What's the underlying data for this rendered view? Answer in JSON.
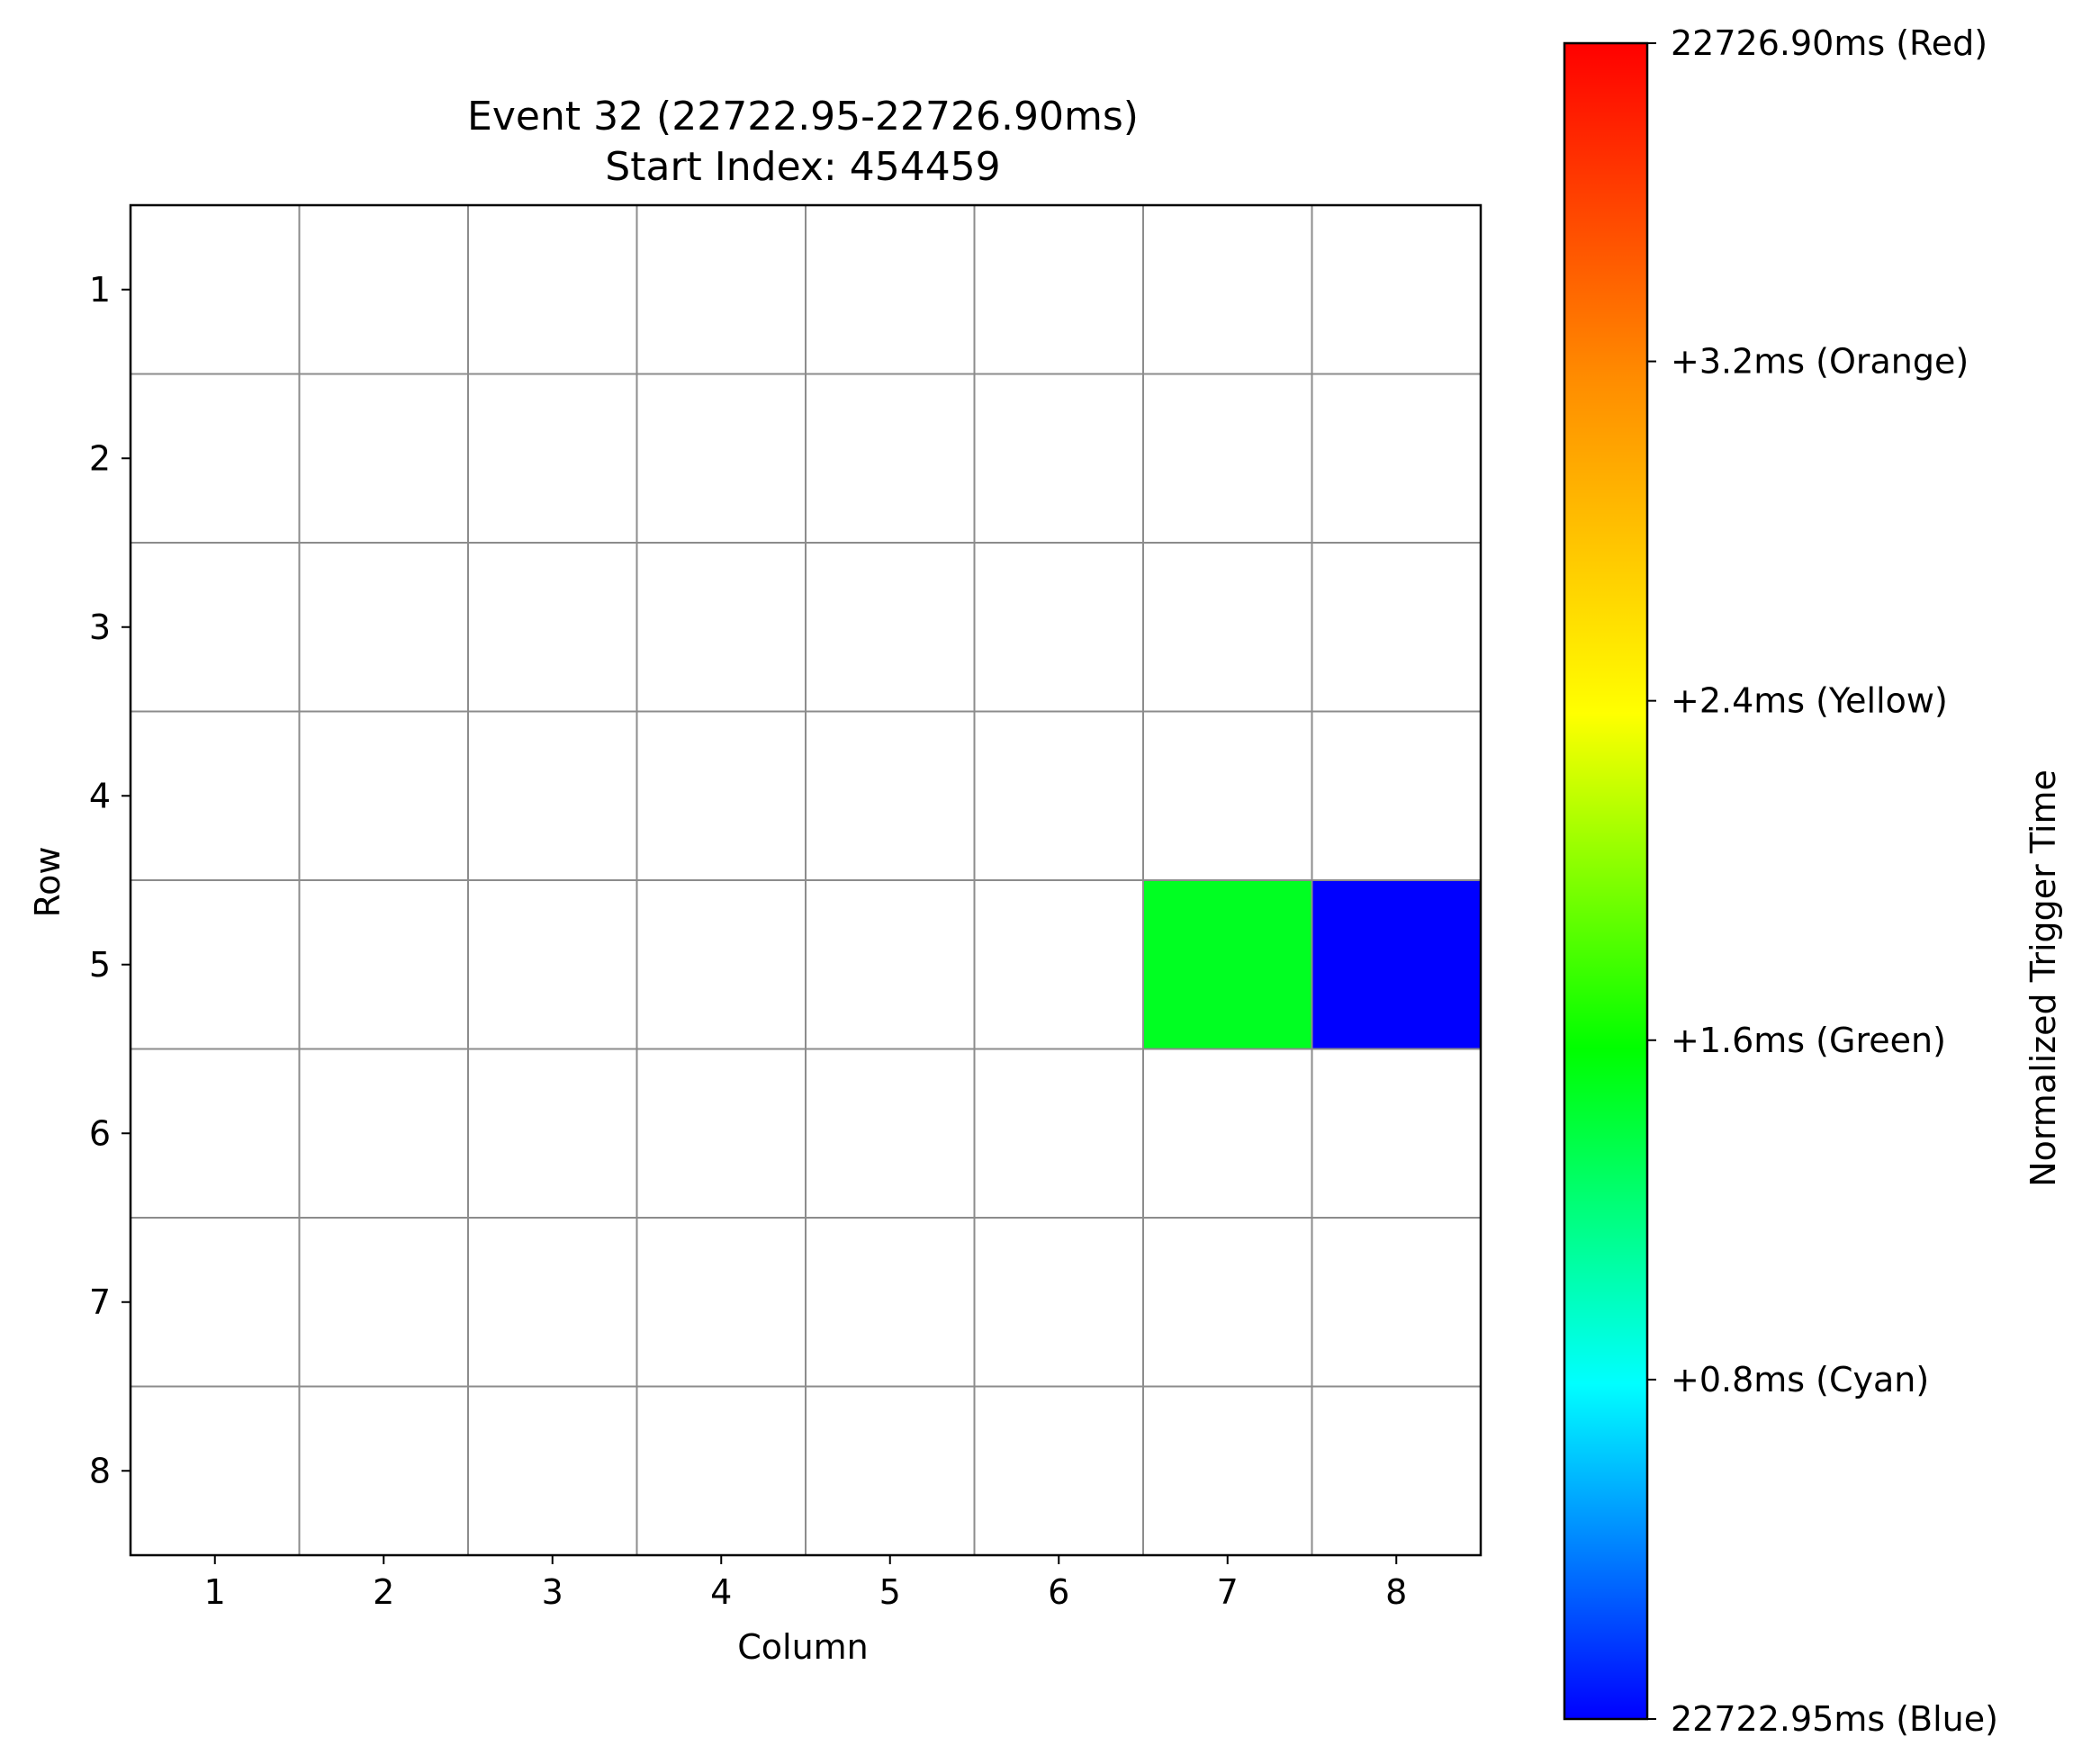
{
  "chart_data": {
    "type": "heatmap",
    "title": "Event 32 (22722.95-22726.90ms)",
    "subtitle": "Start Index: 454459",
    "xlabel": "Column",
    "ylabel": "Row",
    "x_ticks": [
      "1",
      "2",
      "3",
      "4",
      "5",
      "6",
      "7",
      "8"
    ],
    "y_ticks": [
      "1",
      "2",
      "3",
      "4",
      "5",
      "6",
      "7",
      "8"
    ],
    "rows": 8,
    "cols": 8,
    "grid": true,
    "cells": [
      {
        "row": 5,
        "col": 7,
        "value": 1.6,
        "color": "#00ff22"
      },
      {
        "row": 5,
        "col": 8,
        "value": 0.0,
        "color": "#0000ff"
      }
    ],
    "empty_color": "#ffffff",
    "colorbar": {
      "label": "Normalized Trigger Time",
      "range": [
        0,
        3.95
      ],
      "ticks": [
        {
          "value": 0.0,
          "label": "22722.95ms (Blue)"
        },
        {
          "value": 0.8,
          "label": "+0.8ms (Cyan)"
        },
        {
          "value": 1.6,
          "label": "+1.6ms (Green)"
        },
        {
          "value": 2.4,
          "label": "+2.4ms (Yellow)"
        },
        {
          "value": 3.2,
          "label": "+3.2ms (Orange)"
        },
        {
          "value": 3.95,
          "label": "22726.90ms (Red)"
        }
      ],
      "gradient": [
        {
          "pos": 0.0,
          "color": "#0000ff"
        },
        {
          "pos": 0.2,
          "color": "#00ffff"
        },
        {
          "pos": 0.4,
          "color": "#00ff00"
        },
        {
          "pos": 0.6,
          "color": "#ffff00"
        },
        {
          "pos": 0.8,
          "color": "#ff8c00"
        },
        {
          "pos": 1.0,
          "color": "#ff0000"
        }
      ]
    }
  }
}
